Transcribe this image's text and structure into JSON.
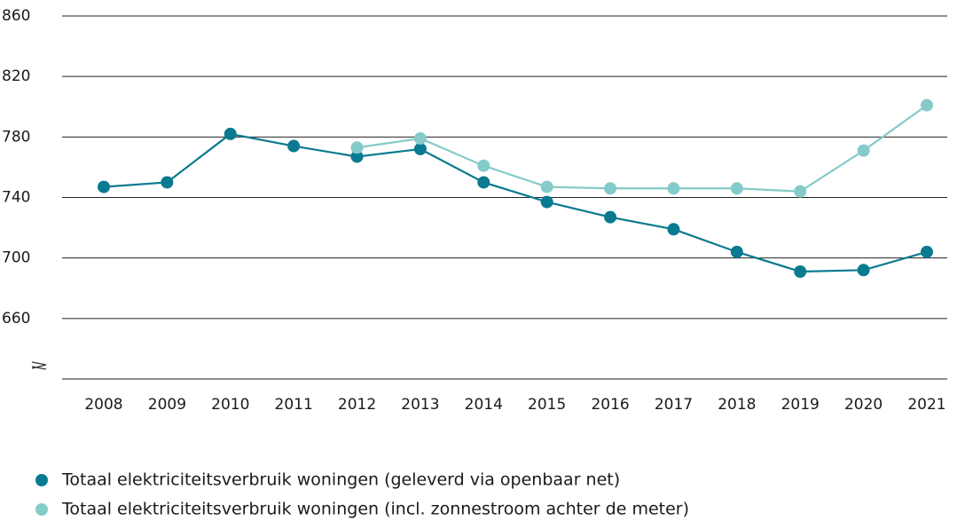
{
  "chart_data": {
    "type": "line",
    "categories": [
      "2008",
      "2009",
      "2010",
      "2011",
      "2012",
      "2013",
      "2014",
      "2015",
      "2016",
      "2017",
      "2018",
      "2019",
      "2020",
      "2021"
    ],
    "series": [
      {
        "name": "Totaal elektriciteitsverbruik woningen (geleverd via openbaar net)",
        "color": "#0a7a90",
        "values": [
          747,
          750,
          782,
          774,
          767,
          772,
          750,
          737,
          727,
          719,
          704,
          691,
          692,
          704
        ]
      },
      {
        "name": "Totaal elektriciteitsverbruik woningen (incl. zonnestroom achter de meter)",
        "color": "#84cbc9",
        "values": [
          null,
          null,
          null,
          null,
          773,
          779,
          761,
          747,
          746,
          746,
          746,
          744,
          771,
          801
        ]
      }
    ],
    "ylim": [
      620,
      860
    ],
    "yticks": [
      660,
      700,
      740,
      780,
      820,
      860
    ],
    "grid": true
  }
}
